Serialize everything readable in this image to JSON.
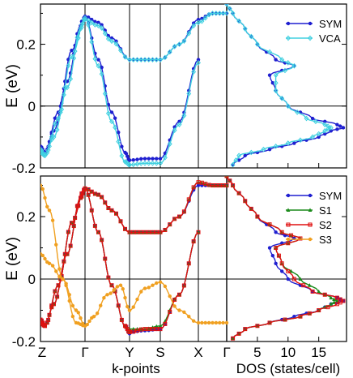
{
  "chart_data": [
    {
      "type": "line",
      "panel": "top",
      "ylabel": "E (eV)",
      "ylim": [
        -0.2,
        0.33
      ],
      "y_ticks": [
        "0.2",
        "0",
        "-0.2"
      ],
      "y_tick_values": [
        0.2,
        0,
        -0.2
      ],
      "band_kpoints": [
        "Z",
        "Γ",
        "Y",
        "S",
        "X",
        "Γ"
      ],
      "series": [
        {
          "name": "SYM",
          "color": "#1f1fd0",
          "marker": "circle",
          "bands": [
            {
              "x": [
                0,
                0.1,
                0.3,
                0.6,
                0.9,
                1,
                1.3,
                1.6,
                1.9,
                2
              ],
              "y": [
                -0.14,
                -0.15,
                -0.08,
                0.08,
                0.26,
                0.29,
                0.15,
                -0.02,
                -0.15,
                -0.175
              ]
            },
            {
              "x": [
                0,
                0.1,
                0.4,
                0.7,
                1,
                1.3,
                1.6,
                2,
                2.5,
                3,
                3.5,
                4,
                4.5,
                5
              ],
              "y": [
                -0.13,
                -0.15,
                -0.02,
                0.18,
                0.29,
                0.27,
                0.22,
                0.15,
                0.15,
                0.15,
                0.2,
                0.28,
                0.3,
                0.3
              ]
            },
            {
              "x": [
                2,
                2.5,
                3,
                3.5,
                4
              ],
              "y": [
                -0.175,
                -0.17,
                -0.17,
                -0.05,
                0.15
              ]
            }
          ],
          "dos": {
            "E": [
              -0.19,
              -0.16,
              -0.14,
              -0.12,
              -0.1,
              -0.08,
              -0.07,
              -0.06,
              -0.04,
              0,
              0.05,
              0.1,
              0.13,
              0.15,
              0.2,
              0.25,
              0.3,
              0.33
            ],
            "dos": [
              1,
              3,
              7,
              11,
              15,
              17,
              19,
              18,
              14,
              10,
              8,
              7,
              11,
              8,
              5,
              3,
              1,
              0
            ]
          }
        },
        {
          "name": "VCA",
          "color": "#40d0e0",
          "marker": "diamond",
          "bands": [
            {
              "x": [
                0,
                0.1,
                0.3,
                0.6,
                0.9,
                1,
                1.3,
                1.6,
                1.9,
                2
              ],
              "y": [
                -0.15,
                -0.16,
                -0.1,
                0.06,
                0.25,
                0.285,
                0.13,
                -0.05,
                -0.18,
                -0.19
              ]
            },
            {
              "x": [
                0,
                0.1,
                0.4,
                0.7,
                1,
                1.3,
                1.6,
                2,
                2.5,
                3,
                3.5,
                4,
                4.5,
                5
              ],
              "y": [
                -0.14,
                -0.16,
                -0.04,
                0.16,
                0.28,
                0.26,
                0.21,
                0.15,
                0.15,
                0.15,
                0.2,
                0.27,
                0.3,
                0.3
              ]
            },
            {
              "x": [
                2,
                2.5,
                3,
                3.5,
                4
              ],
              "y": [
                -0.19,
                -0.185,
                -0.185,
                -0.06,
                0.14
              ]
            }
          ],
          "dos": {
            "E": [
              -0.19,
              -0.16,
              -0.14,
              -0.12,
              -0.1,
              -0.08,
              -0.07,
              -0.06,
              -0.04,
              0,
              0.05,
              0.1,
              0.13,
              0.15,
              0.2,
              0.25,
              0.3,
              0.33
            ],
            "dos": [
              1,
              2,
              6,
              10,
              14,
              16,
              17,
              16,
              13,
              10,
              8,
              8,
              11,
              9,
              5,
              3,
              1,
              0
            ]
          }
        }
      ]
    },
    {
      "type": "line",
      "panel": "bottom",
      "ylabel": "E (eV)",
      "xlabel": "k-points",
      "dos_xlabel": "DOS (states/cell)",
      "ylim": [
        -0.2,
        0.33
      ],
      "y_ticks": [
        "0.2",
        "0",
        "-0.2"
      ],
      "y_tick_values": [
        0.2,
        0,
        -0.2
      ],
      "band_kpoints": [
        "Z",
        "Γ",
        "Y",
        "S",
        "X",
        "Γ"
      ],
      "dos_ticks": [
        "5",
        "10",
        "15"
      ],
      "dos_tick_values": [
        5,
        10,
        15
      ],
      "series": [
        {
          "name": "SYM",
          "color": "#1f1fd0",
          "marker": "circle",
          "bands": [
            {
              "x": [
                0,
                0.1,
                0.3,
                0.6,
                0.9,
                1,
                1.3,
                1.6,
                1.9,
                2
              ],
              "y": [
                -0.14,
                -0.15,
                -0.08,
                0.08,
                0.26,
                0.29,
                0.15,
                -0.02,
                -0.15,
                -0.175
              ]
            },
            {
              "x": [
                0,
                0.1,
                0.4,
                0.7,
                1,
                1.3,
                1.6,
                2,
                2.5,
                3,
                3.5,
                4,
                4.5,
                5
              ],
              "y": [
                -0.13,
                -0.15,
                -0.02,
                0.18,
                0.29,
                0.27,
                0.22,
                0.15,
                0.15,
                0.15,
                0.2,
                0.3,
                0.3,
                0.3
              ]
            },
            {
              "x": [
                2,
                2.5,
                3,
                3.5,
                4
              ],
              "y": [
                -0.17,
                -0.165,
                -0.16,
                -0.05,
                0.15
              ]
            }
          ],
          "dos": {
            "E": [
              -0.19,
              -0.16,
              -0.14,
              -0.12,
              -0.1,
              -0.08,
              -0.07,
              -0.06,
              -0.04,
              0,
              0.05,
              0.1,
              0.13,
              0.15,
              0.2,
              0.25,
              0.3,
              0.33
            ],
            "dos": [
              1,
              3,
              7,
              11,
              15,
              17,
              19,
              18,
              14,
              10,
              8,
              7,
              11,
              8,
              5,
              3,
              1,
              0
            ]
          }
        },
        {
          "name": "S1",
          "color": "#1a8a1a",
          "marker": "triangle",
          "bands": [
            {
              "x": [
                0,
                0.1,
                0.3,
                0.6,
                0.9,
                1,
                1.3,
                1.6,
                1.9,
                2
              ],
              "y": [
                -0.14,
                -0.15,
                -0.08,
                0.08,
                0.26,
                0.29,
                0.15,
                -0.02,
                -0.15,
                -0.17
              ]
            },
            {
              "x": [
                0,
                0.1,
                0.4,
                0.7,
                1,
                1.3,
                1.6,
                2,
                2.5,
                3,
                3.5,
                4,
                4.5,
                5
              ],
              "y": [
                -0.13,
                -0.15,
                -0.02,
                0.18,
                0.29,
                0.27,
                0.22,
                0.15,
                0.15,
                0.15,
                0.2,
                0.31,
                0.3,
                0.3
              ]
            },
            {
              "x": [
                2,
                2.5,
                3,
                3.5,
                4
              ],
              "y": [
                -0.16,
                -0.16,
                -0.15,
                -0.05,
                0.15
              ]
            }
          ],
          "dos": {
            "E": [
              -0.19,
              -0.16,
              -0.14,
              -0.12,
              -0.1,
              -0.08,
              -0.07,
              -0.06,
              -0.04,
              0,
              0.05,
              0.1,
              0.13,
              0.15,
              0.2,
              0.25,
              0.3,
              0.33
            ],
            "dos": [
              1,
              3,
              7,
              12,
              15,
              17,
              18,
              17,
              15,
              12,
              9,
              8,
              12,
              9,
              5,
              3,
              1,
              0
            ]
          }
        },
        {
          "name": "S2",
          "color": "#e01010",
          "marker": "square",
          "bands": [
            {
              "x": [
                0,
                0.1,
                0.3,
                0.6,
                0.9,
                1,
                1.3,
                1.6,
                1.9,
                2
              ],
              "y": [
                -0.14,
                -0.15,
                -0.08,
                0.08,
                0.26,
                0.29,
                0.15,
                -0.02,
                -0.15,
                -0.17
              ]
            },
            {
              "x": [
                0,
                0.1,
                0.4,
                0.7,
                1,
                1.3,
                1.6,
                2,
                2.5,
                3,
                3.5,
                4,
                4.5,
                5
              ],
              "y": [
                -0.13,
                -0.15,
                -0.02,
                0.18,
                0.29,
                0.27,
                0.22,
                0.15,
                0.15,
                0.15,
                0.2,
                0.31,
                0.3,
                0.3
              ]
            },
            {
              "x": [
                2,
                2.5,
                3,
                3.5,
                4
              ],
              "y": [
                -0.17,
                -0.16,
                -0.16,
                -0.05,
                0.15
              ]
            }
          ],
          "dos": {
            "E": [
              -0.19,
              -0.16,
              -0.14,
              -0.12,
              -0.1,
              -0.08,
              -0.07,
              -0.06,
              -0.04,
              0,
              0.05,
              0.1,
              0.13,
              0.15,
              0.2,
              0.25,
              0.3,
              0.33
            ],
            "dos": [
              1,
              3,
              7,
              12,
              15,
              18,
              19,
              18,
              14,
              11,
              9,
              8,
              12,
              9,
              5,
              3,
              1,
              0
            ]
          }
        },
        {
          "name": "S3",
          "color": "#f0a020",
          "marker": "circle",
          "bands": [
            {
              "x": [
                0,
                0.2,
                0.5,
                0.8,
                1,
                1.2,
                1.5,
                1.8,
                2
              ],
              "y": [
                0.3,
                0.22,
                0.0,
                -0.14,
                -0.15,
                -0.12,
                -0.05,
                -0.02,
                -0.1
              ]
            },
            {
              "x": [
                0,
                0.2,
                0.5,
                0.8,
                1
              ],
              "y": [
                0.08,
                0.05,
                0.0,
                -0.1,
                -0.15
              ]
            },
            {
              "x": [
                2,
                2.5,
                3,
                3.5,
                4,
                4.5,
                5
              ],
              "y": [
                -0.1,
                -0.03,
                -0.01,
                -0.1,
                -0.14,
                -0.14,
                -0.14
              ]
            }
          ],
          "dos": null
        }
      ]
    }
  ]
}
